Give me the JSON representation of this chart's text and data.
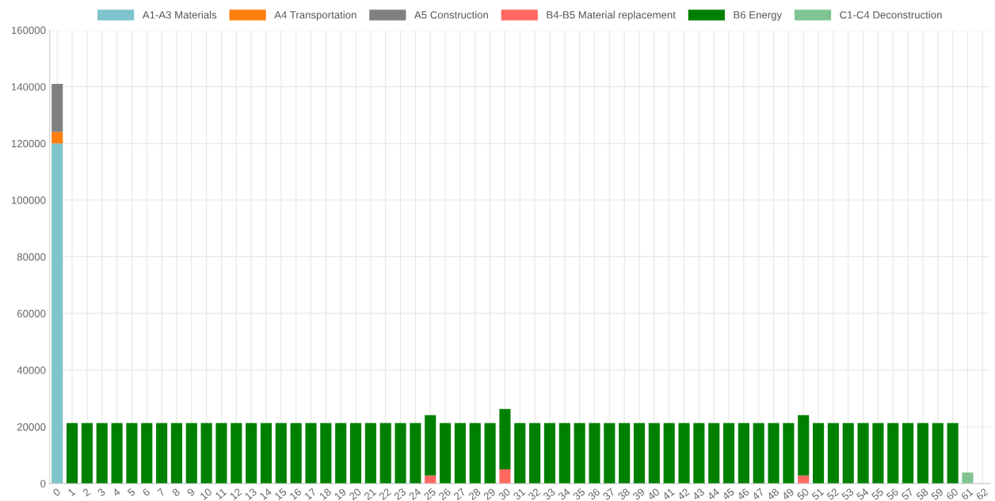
{
  "chart_data": {
    "type": "bar",
    "stacked": true,
    "legend": "top",
    "grid": true,
    "categories": [
      "0",
      "1",
      "2",
      "3",
      "4",
      "5",
      "6",
      "7",
      "8",
      "9",
      "10",
      "11",
      "12",
      "13",
      "14",
      "15",
      "16",
      "17",
      "18",
      "19",
      "20",
      "21",
      "22",
      "23",
      "24",
      "25",
      "26",
      "27",
      "28",
      "29",
      "30",
      "31",
      "32",
      "33",
      "34",
      "35",
      "36",
      "37",
      "38",
      "39",
      "40",
      "41",
      "42",
      "43",
      "44",
      "45",
      "46",
      "47",
      "48",
      "49",
      "50",
      "51",
      "52",
      "53",
      "54",
      "55",
      "56",
      "57",
      "58",
      "59",
      "60",
      "61",
      "62"
    ],
    "ylim": [
      0,
      160000
    ],
    "yticks": [
      0,
      20000,
      40000,
      60000,
      80000,
      100000,
      120000,
      140000,
      160000
    ],
    "series": [
      {
        "name": "A1-A3 Materials",
        "color": "#7fc4cc",
        "values": [
          120000,
          null,
          null,
          null,
          null,
          null,
          null,
          null,
          null,
          null,
          null,
          null,
          null,
          null,
          null,
          null,
          null,
          null,
          null,
          null,
          null,
          null,
          null,
          null,
          null,
          null,
          null,
          null,
          null,
          null,
          null,
          null,
          null,
          null,
          null,
          null,
          null,
          null,
          null,
          null,
          null,
          null,
          null,
          null,
          null,
          null,
          null,
          null,
          null,
          null,
          null,
          null,
          null,
          null,
          null,
          null,
          null,
          null,
          null,
          null,
          null,
          null,
          null
        ]
      },
      {
        "name": "A4 Transportation",
        "color": "#ff7f0e",
        "values": [
          4000,
          null,
          null,
          null,
          null,
          null,
          null,
          null,
          null,
          null,
          null,
          null,
          null,
          null,
          null,
          null,
          null,
          null,
          null,
          null,
          null,
          null,
          null,
          null,
          null,
          null,
          null,
          null,
          null,
          null,
          null,
          null,
          null,
          null,
          null,
          null,
          null,
          null,
          null,
          null,
          null,
          null,
          null,
          null,
          null,
          null,
          null,
          null,
          null,
          null,
          null,
          null,
          null,
          null,
          null,
          null,
          null,
          null,
          null,
          null,
          null,
          null,
          null
        ]
      },
      {
        "name": "A5 Construction",
        "color": "#808080",
        "values": [
          17000,
          null,
          null,
          null,
          null,
          null,
          null,
          null,
          null,
          null,
          null,
          null,
          null,
          null,
          null,
          null,
          null,
          null,
          null,
          null,
          null,
          null,
          null,
          null,
          null,
          null,
          null,
          null,
          null,
          null,
          null,
          null,
          null,
          null,
          null,
          null,
          null,
          null,
          null,
          null,
          null,
          null,
          null,
          null,
          null,
          null,
          null,
          null,
          null,
          null,
          null,
          null,
          null,
          null,
          null,
          null,
          null,
          null,
          null,
          null,
          null,
          null,
          null
        ]
      },
      {
        "name": "B4-B5 Material replacement",
        "color": "#ff6961",
        "values": [
          null,
          null,
          null,
          null,
          null,
          null,
          null,
          null,
          null,
          null,
          null,
          null,
          null,
          null,
          null,
          null,
          null,
          null,
          null,
          null,
          null,
          null,
          null,
          null,
          null,
          2800,
          null,
          null,
          null,
          null,
          5000,
          null,
          null,
          null,
          null,
          null,
          null,
          null,
          null,
          null,
          null,
          null,
          null,
          null,
          null,
          null,
          null,
          null,
          null,
          null,
          2800,
          null,
          null,
          null,
          null,
          null,
          null,
          null,
          null,
          null,
          null,
          null,
          null
        ]
      },
      {
        "name": "B6 Energy",
        "color": "#008000",
        "values": [
          null,
          21300,
          21300,
          21300,
          21300,
          21300,
          21300,
          21300,
          21300,
          21300,
          21300,
          21300,
          21300,
          21300,
          21300,
          21300,
          21300,
          21300,
          21300,
          21300,
          21300,
          21300,
          21300,
          21300,
          21300,
          21300,
          21300,
          21300,
          21300,
          21300,
          21300,
          21300,
          21300,
          21300,
          21300,
          21300,
          21300,
          21300,
          21300,
          21300,
          21300,
          21300,
          21300,
          21300,
          21300,
          21300,
          21300,
          21300,
          21300,
          21300,
          21300,
          21300,
          21300,
          21300,
          21300,
          21300,
          21300,
          21300,
          21300,
          21300,
          21300,
          null,
          null
        ]
      },
      {
        "name": "C1-C4 Deconstruction",
        "color": "#80c494",
        "values": [
          null,
          null,
          null,
          null,
          null,
          null,
          null,
          null,
          null,
          null,
          null,
          null,
          null,
          null,
          null,
          null,
          null,
          null,
          null,
          null,
          null,
          null,
          null,
          null,
          null,
          null,
          null,
          null,
          null,
          null,
          null,
          null,
          null,
          null,
          null,
          null,
          null,
          null,
          null,
          null,
          null,
          null,
          null,
          null,
          null,
          null,
          null,
          null,
          null,
          null,
          null,
          null,
          null,
          null,
          null,
          null,
          null,
          null,
          null,
          null,
          null,
          3900,
          null
        ]
      }
    ]
  }
}
